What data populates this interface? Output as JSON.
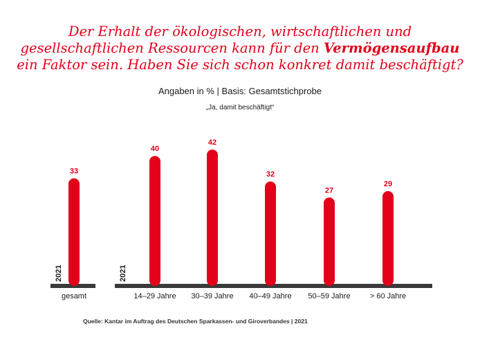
{
  "chart_data": {
    "type": "bar",
    "title_parts": [
      {
        "text": "Der Erhalt der ökologischen, wirtschaftlichen und",
        "bold": false,
        "br": true
      },
      {
        "text": "gesellschaftlichen Ressourcen kann für den ",
        "bold": false,
        "br": false
      },
      {
        "text": "Vermögensaufbau",
        "bold": true,
        "br": true
      },
      {
        "text": "ein Faktor sein. Haben Sie sich schon konkret damit beschäftigt?",
        "bold": false,
        "br": false
      }
    ],
    "subtitle": "Angaben in % | Basis: Gesamtstichprobe",
    "series_label": "„Ja, damit beschäftigt“",
    "year_label": "2021",
    "groups": [
      {
        "name": "gesamt",
        "categories": [
          "gesamt"
        ],
        "values": [
          33
        ]
      },
      {
        "name": "Alter",
        "categories": [
          "14–29 Jahre",
          "30–39 Jahre",
          "40–49 Jahre",
          "50–59 Jahre",
          "> 60 Jahre"
        ],
        "values": [
          40,
          42,
          32,
          27,
          29
        ]
      }
    ],
    "ylim": [
      0,
      50
    ],
    "grid": false,
    "colors": {
      "bar": "#e2001a",
      "baseline": "#3a3a3a",
      "value_label": "#e2001a"
    }
  },
  "source": "Quelle: Kantar im Auftrag des Deutschen Sparkassen- und Giroverbandes | 2021"
}
